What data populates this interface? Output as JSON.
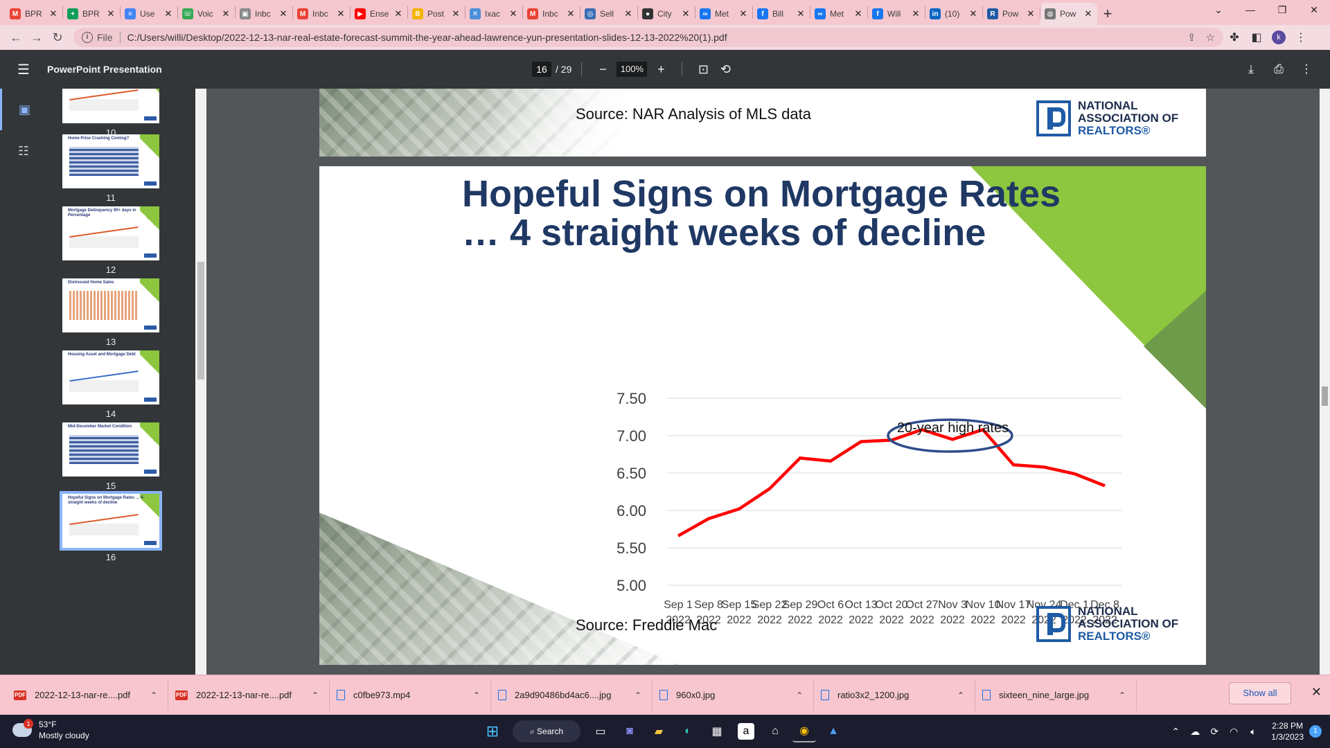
{
  "tabs": [
    {
      "title": "BPR",
      "icon": "gmail-icon",
      "color": "#ea4335",
      "glyph": "M"
    },
    {
      "title": "BPR",
      "icon": "sheets-icon",
      "color": "#0f9d58",
      "glyph": "+"
    },
    {
      "title": "Use",
      "icon": "docs-icon",
      "color": "#4285f4",
      "glyph": "≡"
    },
    {
      "title": "Voic",
      "icon": "phone-icon",
      "color": "#34a853",
      "glyph": "☏"
    },
    {
      "title": "Inbc",
      "icon": "inbox-icon",
      "color": "#888888",
      "glyph": "▣"
    },
    {
      "title": "Inbc",
      "icon": "gmail-icon",
      "color": "#ea4335",
      "glyph": "M"
    },
    {
      "title": "Ense",
      "icon": "youtube-icon",
      "color": "#ff0000",
      "glyph": "▶"
    },
    {
      "title": "Post",
      "icon": "blogger-icon",
      "color": "#f4b400",
      "glyph": "B"
    },
    {
      "title": "Ixac",
      "icon": "x-icon",
      "color": "#4a90d9",
      "glyph": "✕"
    },
    {
      "title": "Inbc",
      "icon": "gmail-icon",
      "color": "#ea4335",
      "glyph": "M"
    },
    {
      "title": "Sell",
      "icon": "sell-icon",
      "color": "#3b6fb5",
      "glyph": "◎"
    },
    {
      "title": "City",
      "icon": "github-icon",
      "color": "#333333",
      "glyph": "●"
    },
    {
      "title": "Met",
      "icon": "meta-icon",
      "color": "#1877f2",
      "glyph": "∞"
    },
    {
      "title": "Bill",
      "icon": "facebook-icon",
      "color": "#1877f2",
      "glyph": "f"
    },
    {
      "title": "Met",
      "icon": "meta-icon",
      "color": "#1877f2",
      "glyph": "∞"
    },
    {
      "title": "Will",
      "icon": "facebook-icon",
      "color": "#1877f2",
      "glyph": "f"
    },
    {
      "title": "(10)",
      "icon": "linkedin-icon",
      "color": "#0a66c2",
      "glyph": "in"
    },
    {
      "title": "Pow",
      "icon": "realtor-icon",
      "color": "#1f5ba6",
      "glyph": "R"
    },
    {
      "title": "Pow",
      "icon": "globe-icon",
      "color": "#777777",
      "glyph": "◍"
    }
  ],
  "address": {
    "file_label": "File",
    "url": "C:/Users/willi/Desktop/2022-12-13-nar-real-estate-forecast-summit-the-year-ahead-lawrence-yun-presentation-slides-12-13-2022%20(1).pdf"
  },
  "profile_initial": "k",
  "pdf": {
    "title": "PowerPoint Presentation",
    "current_page": "16",
    "total_pages": "/ 29",
    "zoom": "100%"
  },
  "thumbnails": [
    {
      "num": "10",
      "title": ""
    },
    {
      "num": "11",
      "title": "Home Price Crashing Coming?"
    },
    {
      "num": "12",
      "title": "Mortgage Delinquency 90+ days in Percentage"
    },
    {
      "num": "13",
      "title": "Distressed Home Sales"
    },
    {
      "num": "14",
      "title": "Housing Asset and Mortgage Debt"
    },
    {
      "num": "15",
      "title": "Mid-December Market Condition"
    },
    {
      "num": "16",
      "title": "Hopeful Signs on Mortgage Rates … 4 straight weeks of decline"
    }
  ],
  "prev_slide": {
    "source": "Source: NAR Analysis of MLS data"
  },
  "logo": {
    "line1": "NATIONAL",
    "line2": "ASSOCIATION OF",
    "line3": "REALTORS®"
  },
  "slide": {
    "title_line1": "Hopeful Signs on Mortgage Rates",
    "title_line2": "… 4 straight weeks of decline",
    "annotation": "20-year high rates",
    "source": "Source: Freddie Mac"
  },
  "colors": {
    "title": "#1f3864",
    "line": "#ff0000",
    "ellipse": "#2f4b8a",
    "green": "#8dc63f"
  },
  "chart_data": {
    "type": "line",
    "title": "",
    "xlabel": "",
    "ylabel": "",
    "ylim": [
      5.0,
      7.5
    ],
    "y_ticks": [
      "7.50",
      "7.00",
      "6.50",
      "6.00",
      "5.50",
      "5.00"
    ],
    "categories": [
      [
        "Sep 1",
        "2022"
      ],
      [
        "Sep 8",
        "2022"
      ],
      [
        "Sep 15",
        "2022"
      ],
      [
        "Sep 22",
        "2022"
      ],
      [
        "Sep 29",
        "2022"
      ],
      [
        "Oct 6",
        "2022"
      ],
      [
        "Oct 13",
        "2022"
      ],
      [
        "Oct 20",
        "2022"
      ],
      [
        "Oct 27",
        "2022"
      ],
      [
        "Nov 3",
        "2022"
      ],
      [
        "Nov 10",
        "2022"
      ],
      [
        "Nov 17",
        "2022"
      ],
      [
        "Nov 24",
        "2022"
      ],
      [
        "Dec 1",
        "2022"
      ],
      [
        "Dec 8",
        "2022"
      ]
    ],
    "series": [
      {
        "values": [
          5.66,
          5.89,
          6.02,
          6.29,
          6.7,
          6.66,
          6.92,
          6.94,
          7.08,
          6.95,
          7.08,
          6.61,
          6.58,
          6.49,
          6.33
        ]
      }
    ],
    "grid": true
  },
  "downloads": [
    {
      "name": "2022-12-13-nar-re....pdf",
      "kind": "pdf"
    },
    {
      "name": "2022-12-13-nar-re....pdf",
      "kind": "pdf"
    },
    {
      "name": "c0fbe973.mp4",
      "kind": "file"
    },
    {
      "name": "2a9d90486bd4ac6....jpg",
      "kind": "file"
    },
    {
      "name": "960x0.jpg",
      "kind": "file"
    },
    {
      "name": "ratio3x2_1200.jpg",
      "kind": "file"
    },
    {
      "name": "sixteen_nine_large.jpg",
      "kind": "file"
    }
  ],
  "show_all": "Show all",
  "taskbar": {
    "badge": "1",
    "temp": "53°F",
    "weather": "Mostly cloudy",
    "search": "Search",
    "time": "2:28 PM",
    "date": "1/3/2023",
    "notifications": "1"
  }
}
